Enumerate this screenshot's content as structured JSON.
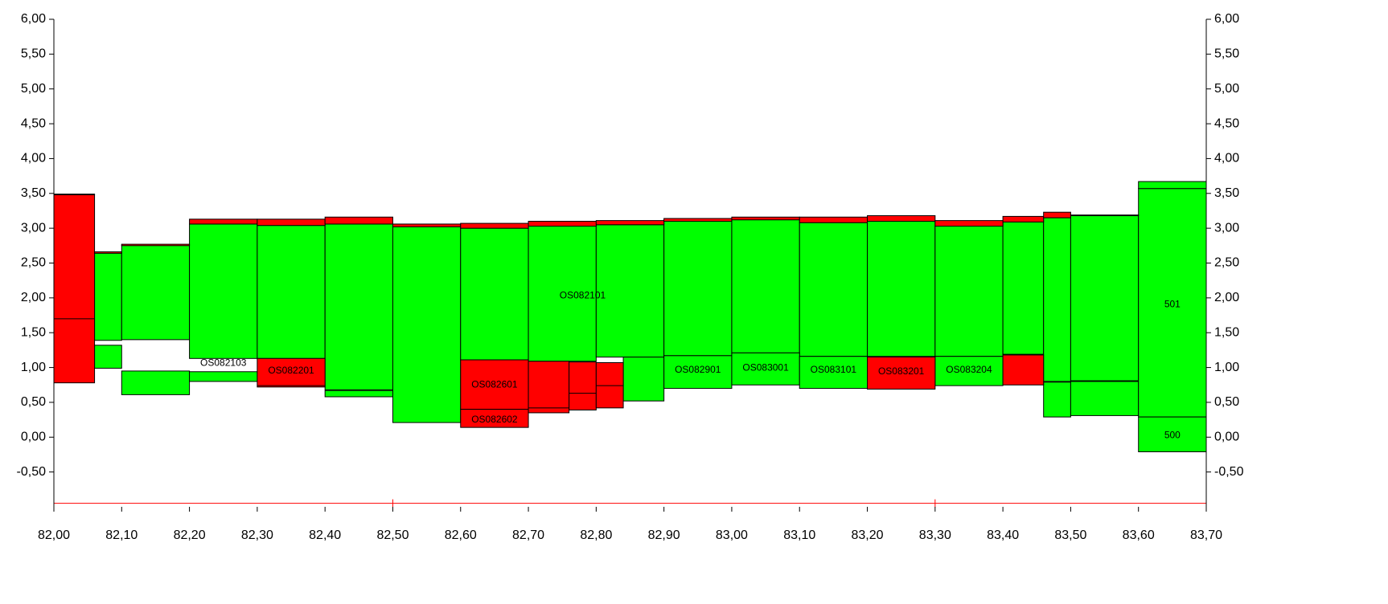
{
  "chart_data": {
    "type": "area",
    "title": "",
    "xlabel": "",
    "ylabel": "",
    "xlim": [
      82.0,
      83.7
    ],
    "ylim": [
      -1.0,
      6.0
    ],
    "grid": false,
    "y_ticks": [
      "6,00",
      "5,50",
      "5,00",
      "4,50",
      "4,00",
      "3,50",
      "3,00",
      "2,50",
      "2,00",
      "1,50",
      "1,00",
      "0,50",
      "0,00",
      "-0,50"
    ],
    "y_tick_values": [
      6.0,
      5.5,
      5.0,
      4.5,
      4.0,
      3.5,
      3.0,
      2.5,
      2.0,
      1.5,
      1.0,
      0.5,
      0.0,
      -0.5
    ],
    "x_ticks": [
      "82,00",
      "82,10",
      "82,20",
      "82,30",
      "82,40",
      "82,50",
      "82,60",
      "82,70",
      "82,80",
      "82,90",
      "83,00",
      "83,10",
      "83,20",
      "83,30",
      "83,40",
      "83,50",
      "83,60",
      "83,70"
    ],
    "x_tick_values": [
      82.0,
      82.1,
      82.2,
      82.3,
      82.4,
      82.5,
      82.6,
      82.7,
      82.8,
      82.9,
      83.0,
      83.1,
      83.2,
      83.3,
      83.4,
      83.5,
      83.6,
      83.7
    ],
    "colors": {
      "fill": "#00ff00",
      "cut": "#ff0000",
      "outline": "#000000",
      "reference_line": "#ff0000"
    },
    "reference_line": {
      "y": -0.95,
      "x_marks": [
        82.5,
        83.3
      ]
    },
    "blocks": [
      {
        "x0": 82.06,
        "x1": 82.1,
        "y0": 1.39,
        "y1": 2.66,
        "color": "fill"
      },
      {
        "x0": 82.1,
        "x1": 82.2,
        "y0": 1.4,
        "y1": 2.76,
        "color": "fill"
      },
      {
        "x0": 82.2,
        "x1": 82.3,
        "y0": 1.13,
        "y1": 3.06,
        "color": "fill"
      },
      {
        "x0": 82.3,
        "x1": 82.4,
        "y0": 1.13,
        "y1": 3.04,
        "color": "fill"
      },
      {
        "x0": 82.4,
        "x1": 82.5,
        "y0": 0.68,
        "y1": 3.06,
        "color": "fill"
      },
      {
        "x0": 82.5,
        "x1": 82.6,
        "y0": 0.21,
        "y1": 3.02,
        "color": "fill"
      },
      {
        "x0": 82.6,
        "x1": 82.7,
        "y0": 1.11,
        "y1": 3.0,
        "color": "fill"
      },
      {
        "x0": 82.7,
        "x1": 82.8,
        "y0": 1.09,
        "y1": 3.03,
        "color": "fill"
      },
      {
        "x0": 82.8,
        "x1": 82.9,
        "y0": 1.15,
        "y1": 3.05,
        "color": "fill"
      },
      {
        "x0": 82.9,
        "x1": 83.0,
        "y0": 1.17,
        "y1": 3.12,
        "color": "fill"
      },
      {
        "x0": 83.0,
        "x1": 83.1,
        "y0": 1.21,
        "y1": 3.14,
        "color": "fill"
      },
      {
        "x0": 83.1,
        "x1": 83.2,
        "y0": 1.16,
        "y1": 3.08,
        "color": "fill"
      },
      {
        "x0": 83.2,
        "x1": 83.3,
        "y0": 1.16,
        "y1": 3.1,
        "color": "fill"
      },
      {
        "x0": 83.3,
        "x1": 83.4,
        "y0": 1.16,
        "y1": 3.03,
        "color": "fill"
      },
      {
        "x0": 83.4,
        "x1": 83.46,
        "y0": 1.19,
        "y1": 3.09,
        "color": "fill"
      },
      {
        "x0": 83.46,
        "x1": 83.5,
        "y0": 0.8,
        "y1": 3.15,
        "color": "fill"
      },
      {
        "x0": 83.5,
        "x1": 83.6,
        "y0": 0.81,
        "y1": 3.18,
        "color": "fill"
      },
      {
        "x0": 82.06,
        "x1": 82.1,
        "y0": 0.99,
        "y1": 1.32,
        "color": "fill"
      },
      {
        "x0": 82.1,
        "x1": 82.2,
        "y0": 0.61,
        "y1": 0.95,
        "color": "fill"
      },
      {
        "x0": 82.2,
        "x1": 82.3,
        "y0": 0.8,
        "y1": 0.94,
        "color": "fill"
      },
      {
        "x0": 82.4,
        "x1": 82.5,
        "y0": 0.58,
        "y1": 0.67,
        "color": "fill"
      },
      {
        "x0": 82.84,
        "x1": 82.9,
        "y0": 0.52,
        "y1": 1.15,
        "color": "fill"
      },
      {
        "x0": 82.9,
        "x1": 83.0,
        "y0": 0.7,
        "y1": 1.17,
        "color": "fill"
      },
      {
        "x0": 83.0,
        "x1": 83.1,
        "y0": 0.75,
        "y1": 1.21,
        "color": "fill"
      },
      {
        "x0": 83.1,
        "x1": 83.2,
        "y0": 0.7,
        "y1": 1.16,
        "color": "fill"
      },
      {
        "x0": 83.3,
        "x1": 83.4,
        "y0": 0.74,
        "y1": 1.16,
        "color": "fill"
      },
      {
        "x0": 83.46,
        "x1": 83.5,
        "y0": 0.29,
        "y1": 0.79,
        "color": "fill"
      },
      {
        "x0": 83.5,
        "x1": 83.6,
        "y0": 0.31,
        "y1": 0.8,
        "color": "fill"
      },
      {
        "x0": 83.6,
        "x1": 83.7,
        "y0": 0.29,
        "y1": 3.57,
        "color": "fill"
      },
      {
        "x0": 83.6,
        "x1": 83.7,
        "y0": -0.21,
        "y1": 0.29,
        "color": "fill"
      },
      {
        "x0": 83.6,
        "x1": 83.7,
        "y0": 3.57,
        "y1": 3.67,
        "color": "fill"
      },
      {
        "x0": 82.0,
        "x1": 82.06,
        "y0": 0.78,
        "y1": 3.48,
        "color": "cut"
      },
      {
        "x0": 82.0,
        "x1": 82.06,
        "y0": 3.48,
        "y1": 3.49,
        "color": "cut"
      },
      {
        "x0": 82.06,
        "x1": 82.1,
        "y0": 2.64,
        "y1": 2.66,
        "color": "cut"
      },
      {
        "x0": 82.1,
        "x1": 82.2,
        "y0": 2.75,
        "y1": 2.77,
        "color": "cut"
      },
      {
        "x0": 82.2,
        "x1": 82.3,
        "y0": 3.06,
        "y1": 3.13,
        "color": "cut"
      },
      {
        "x0": 82.3,
        "x1": 82.4,
        "y0": 3.04,
        "y1": 3.13,
        "color": "cut"
      },
      {
        "x0": 82.3,
        "x1": 82.4,
        "y0": 0.72,
        "y1": 1.13,
        "color": "cut"
      },
      {
        "x0": 82.4,
        "x1": 82.5,
        "y0": 3.06,
        "y1": 3.16,
        "color": "cut"
      },
      {
        "x0": 82.5,
        "x1": 82.6,
        "y0": 3.02,
        "y1": 3.06,
        "color": "cut"
      },
      {
        "x0": 82.6,
        "x1": 82.7,
        "y0": 3.0,
        "y1": 3.07,
        "color": "cut"
      },
      {
        "x0": 82.7,
        "x1": 82.8,
        "y0": 3.03,
        "y1": 3.1,
        "color": "cut"
      },
      {
        "x0": 82.8,
        "x1": 82.9,
        "y0": 3.05,
        "y1": 3.11,
        "color": "cut"
      },
      {
        "x0": 82.9,
        "x1": 83.0,
        "y0": 3.1,
        "y1": 3.14,
        "color": "cut"
      },
      {
        "x0": 83.0,
        "x1": 83.1,
        "y0": 3.12,
        "y1": 3.16,
        "color": "cut"
      },
      {
        "x0": 83.1,
        "x1": 83.2,
        "y0": 3.08,
        "y1": 3.16,
        "color": "cut"
      },
      {
        "x0": 83.2,
        "x1": 83.3,
        "y0": 3.1,
        "y1": 3.18,
        "color": "cut"
      },
      {
        "x0": 83.3,
        "x1": 83.4,
        "y0": 3.03,
        "y1": 3.11,
        "color": "cut"
      },
      {
        "x0": 83.4,
        "x1": 83.46,
        "y0": 3.09,
        "y1": 3.17,
        "color": "cut"
      },
      {
        "x0": 83.46,
        "x1": 83.5,
        "y0": 3.15,
        "y1": 3.23,
        "color": "cut"
      },
      {
        "x0": 83.5,
        "x1": 83.6,
        "y0": 3.18,
        "y1": 3.19,
        "color": "cut"
      },
      {
        "x0": 82.6,
        "x1": 82.7,
        "y0": 0.4,
        "y1": 1.11,
        "color": "cut"
      },
      {
        "x0": 82.6,
        "x1": 82.7,
        "y0": 0.14,
        "y1": 0.4,
        "color": "cut"
      },
      {
        "x0": 82.7,
        "x1": 82.76,
        "y0": 0.35,
        "y1": 1.09,
        "color": "cut"
      },
      {
        "x0": 82.76,
        "x1": 82.8,
        "y0": 0.39,
        "y1": 1.08,
        "color": "cut"
      },
      {
        "x0": 82.8,
        "x1": 82.84,
        "y0": 0.42,
        "y1": 1.07,
        "color": "cut"
      },
      {
        "x0": 83.2,
        "x1": 83.3,
        "y0": 0.69,
        "y1": 1.15,
        "color": "cut"
      },
      {
        "x0": 83.4,
        "x1": 83.46,
        "y0": 0.75,
        "y1": 1.18,
        "color": "cut"
      }
    ],
    "inner_lines": [
      {
        "x0": 82.0,
        "x1": 82.06,
        "y": 1.7
      },
      {
        "x0": 82.7,
        "x1": 82.76,
        "y": 0.42
      },
      {
        "x0": 82.76,
        "x1": 82.8,
        "y": 0.63
      },
      {
        "x0": 82.8,
        "x1": 82.84,
        "y": 0.74
      },
      {
        "x0": 82.3,
        "x1": 82.4,
        "y": 0.74
      }
    ],
    "labels": [
      {
        "text": "OS082101",
        "x": 82.78,
        "y": 2.03
      },
      {
        "text": "OS082103",
        "x": 82.25,
        "y": 1.06
      },
      {
        "text": "OS082201",
        "x": 82.35,
        "y": 0.95
      },
      {
        "text": "OS082601",
        "x": 82.65,
        "y": 0.75
      },
      {
        "text": "OS082602",
        "x": 82.65,
        "y": 0.25
      },
      {
        "text": "OS082901",
        "x": 82.95,
        "y": 0.96
      },
      {
        "text": "OS083001",
        "x": 83.05,
        "y": 0.99
      },
      {
        "text": "OS083101",
        "x": 83.15,
        "y": 0.96
      },
      {
        "text": "OS083201",
        "x": 83.25,
        "y": 0.94
      },
      {
        "text": "OS083204",
        "x": 83.35,
        "y": 0.96
      },
      {
        "text": "501",
        "x": 83.65,
        "y": 1.9
      },
      {
        "text": "500",
        "x": 83.65,
        "y": 0.02
      }
    ]
  }
}
